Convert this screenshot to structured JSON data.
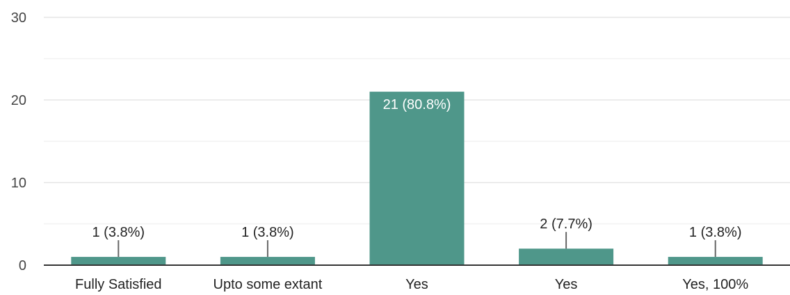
{
  "chart_data": {
    "type": "bar",
    "categories": [
      "Fully Satisfied",
      "Upto some extant",
      "Yes",
      "Yes",
      "Yes, 100%"
    ],
    "values": [
      1,
      1,
      21,
      2,
      1
    ],
    "data_labels": [
      "1 (3.8%)",
      "1 (3.8%)",
      "21 (80.8%)",
      "2 (7.7%)",
      "1 (3.8%)"
    ],
    "ylim": [
      0,
      30
    ],
    "yticks": [
      0,
      10,
      20,
      30
    ],
    "grid": true,
    "minor_grid": true,
    "legend": "none",
    "title": "",
    "xlabel": "",
    "ylabel": ""
  },
  "colors": {
    "bar": "#4f978a",
    "grid_major": "#e6e6e6",
    "grid_minor": "#f2f2f2",
    "axis": "#333333",
    "callout": "#666666"
  }
}
